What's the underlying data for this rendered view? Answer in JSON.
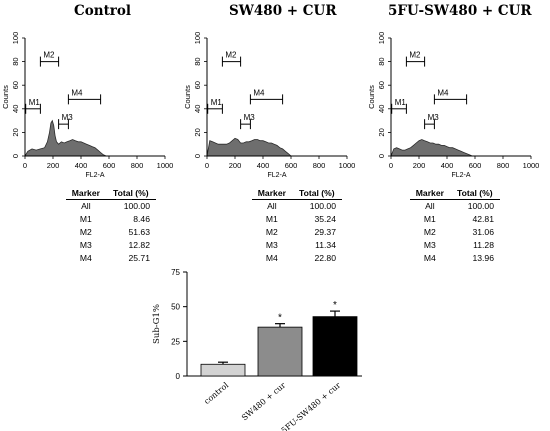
{
  "chart_data": [
    {
      "type": "histogram",
      "title": "Control",
      "xlabel": "FL2-A",
      "ylabel": "Counts",
      "x_ticks": [
        "0",
        "200",
        "400",
        "600",
        "800",
        "1000"
      ],
      "y_ticks": [
        "0",
        "20",
        "40",
        "60",
        "80",
        "100"
      ],
      "xlim": [
        0,
        1000
      ],
      "ylim": [
        0,
        100
      ],
      "profile_x": [
        0,
        20,
        50,
        80,
        110,
        140,
        160,
        175,
        185,
        195,
        205,
        215,
        225,
        240,
        260,
        280,
        300,
        320,
        340,
        360,
        380,
        400,
        420,
        440,
        460,
        480,
        500,
        520,
        540,
        560,
        580
      ],
      "profile_y": [
        0,
        4,
        6,
        5,
        6,
        7,
        12,
        20,
        28,
        30,
        26,
        17,
        12,
        10,
        12,
        11,
        12,
        13,
        14,
        13,
        12,
        12,
        11,
        10,
        9,
        8,
        7,
        5,
        3,
        1,
        0
      ],
      "markers": [
        {
          "name": "M1",
          "x1": 5,
          "x2": 110,
          "y": 40
        },
        {
          "name": "M2",
          "x1": 110,
          "x2": 240,
          "y": 80
        },
        {
          "name": "M3",
          "x1": 240,
          "x2": 310,
          "y": 27
        },
        {
          "name": "M4",
          "x1": 310,
          "x2": 540,
          "y": 48
        }
      ],
      "table": {
        "headers": [
          "Marker",
          "Total (%)"
        ],
        "rows": [
          [
            "All",
            "100.00"
          ],
          [
            "M1",
            "8.46"
          ],
          [
            "M2",
            "51.63"
          ],
          [
            "M3",
            "12.82"
          ],
          [
            "M4",
            "25.71"
          ]
        ]
      }
    },
    {
      "type": "histogram",
      "title": "SW480 + CUR",
      "xlabel": "FL2-A",
      "ylabel": "Counts",
      "x_ticks": [
        "0",
        "200",
        "400",
        "600",
        "800",
        "1000"
      ],
      "y_ticks": [
        "0",
        "20",
        "40",
        "60",
        "80",
        "100"
      ],
      "xlim": [
        0,
        1000
      ],
      "ylim": [
        0,
        100
      ],
      "profile_x": [
        0,
        20,
        40,
        60,
        80,
        100,
        120,
        140,
        160,
        180,
        200,
        220,
        240,
        260,
        280,
        300,
        320,
        340,
        360,
        380,
        400,
        420,
        440,
        460,
        480,
        500,
        520,
        540,
        560,
        580,
        600
      ],
      "profile_y": [
        0,
        13,
        12,
        11,
        10,
        10,
        10,
        10,
        11,
        13,
        15,
        14,
        11,
        11,
        12,
        12,
        13,
        14,
        14,
        13,
        13,
        12,
        11,
        11,
        10,
        9,
        7,
        6,
        4,
        2,
        0
      ],
      "markers": [
        {
          "name": "M1",
          "x1": 5,
          "x2": 110,
          "y": 40
        },
        {
          "name": "M2",
          "x1": 110,
          "x2": 240,
          "y": 80
        },
        {
          "name": "M3",
          "x1": 240,
          "x2": 310,
          "y": 27
        },
        {
          "name": "M4",
          "x1": 310,
          "x2": 540,
          "y": 48
        }
      ],
      "table": {
        "headers": [
          "Marker",
          "Total (%)"
        ],
        "rows": [
          [
            "All",
            "100.00"
          ],
          [
            "M1",
            "35.24"
          ],
          [
            "M2",
            "29.37"
          ],
          [
            "M3",
            "11.34"
          ],
          [
            "M4",
            "22.80"
          ]
        ]
      }
    },
    {
      "type": "histogram",
      "title": "5FU-SW480 + CUR",
      "xlabel": "FL2-A",
      "ylabel": "Counts",
      "x_ticks": [
        "0",
        "200",
        "400",
        "600",
        "800",
        "1000"
      ],
      "y_ticks": [
        "0",
        "20",
        "40",
        "60",
        "80",
        "100"
      ],
      "xlim": [
        0,
        1000
      ],
      "ylim": [
        0,
        100
      ],
      "profile_x": [
        0,
        20,
        40,
        60,
        80,
        100,
        120,
        140,
        160,
        180,
        200,
        220,
        240,
        260,
        280,
        300,
        320,
        340,
        360,
        380,
        400,
        420,
        440,
        460,
        480,
        500,
        520,
        540,
        560,
        580
      ],
      "profile_y": [
        0,
        6,
        7,
        6,
        5,
        5,
        6,
        7,
        9,
        11,
        13,
        14,
        13,
        12,
        11,
        11,
        10,
        10,
        9,
        9,
        8,
        7,
        7,
        6,
        5,
        4,
        3,
        2,
        1,
        0
      ],
      "markers": [
        {
          "name": "M1",
          "x1": 5,
          "x2": 110,
          "y": 40
        },
        {
          "name": "M2",
          "x1": 110,
          "x2": 240,
          "y": 80
        },
        {
          "name": "M3",
          "x1": 240,
          "x2": 310,
          "y": 27
        },
        {
          "name": "M4",
          "x1": 310,
          "x2": 540,
          "y": 48
        }
      ],
      "table": {
        "headers": [
          "Marker",
          "Total (%)"
        ],
        "rows": [
          [
            "All",
            "100.00"
          ],
          [
            "M1",
            "42.81"
          ],
          [
            "M2",
            "31.06"
          ],
          [
            "M3",
            "11.28"
          ],
          [
            "M4",
            "13.96"
          ]
        ]
      }
    },
    {
      "type": "bar",
      "ylabel": "Sub-G1%",
      "categories": [
        "control",
        "SW480 + cur",
        "5FU-SW480 + cur"
      ],
      "values": [
        8.46,
        35.24,
        42.81
      ],
      "errors": [
        1.5,
        2.5,
        4
      ],
      "significance": [
        "",
        "*",
        "*"
      ],
      "ylim": [
        0,
        75
      ],
      "y_ticks": [
        "0",
        "25",
        "50",
        "75"
      ],
      "colors": [
        "#d3d3d3",
        "#8c8c8c",
        "#000000"
      ]
    }
  ]
}
